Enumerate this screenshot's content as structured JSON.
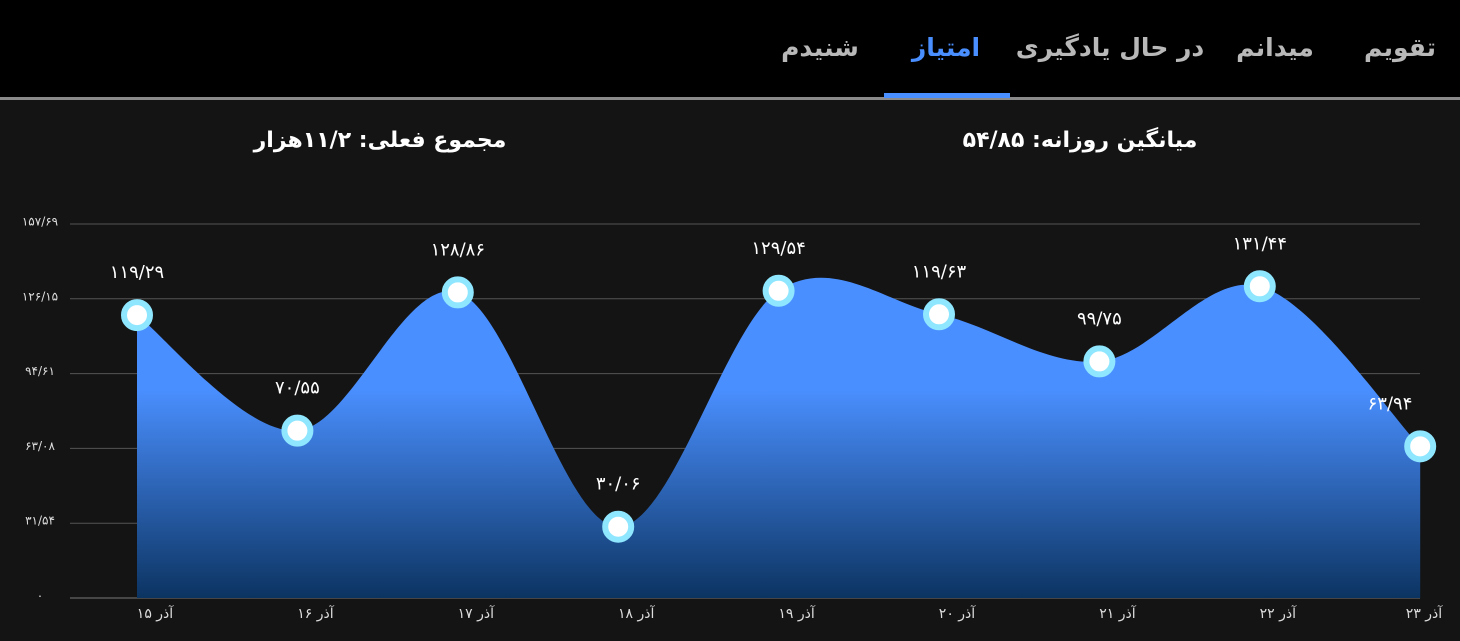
{
  "tabs": [
    "تقویم",
    "میدانم",
    "در حال یادگیری",
    "امتیاز",
    "شنیدم"
  ],
  "active_tab": 3,
  "stats": [
    "میانگین روزانه: ۵۴/۸۵",
    "مجموع فعلی: ۱۱/۲هزار"
  ],
  "chart_data": {
    "type": "area",
    "categories": [
      "۱۵ آذر",
      "۱۶ آذر",
      "۱۷ آذر",
      "۱۸ آذر",
      "۱۹ آذر",
      "۲۰ آذر",
      "۲۱ آذر",
      "۲۲ آذر",
      "۲۳ آذر"
    ],
    "values": [
      119.29,
      70.55,
      128.86,
      30.06,
      129.54,
      119.63,
      99.75,
      131.44,
      63.94
    ],
    "value_labels": [
      "۱۱۹/۲۹",
      "۷۰/۵۵",
      "۱۲۸/۸۶",
      "۳۰/۰۶",
      "۱۲۹/۵۴",
      "۱۱۹/۶۳",
      "۹۹/۷۵",
      "۱۳۱/۴۴",
      "۶۳/۹۴"
    ],
    "color": "#4a8fff",
    "ylim": [
      0,
      157.69
    ],
    "yticks": [
      {
        "value": 0,
        "label": "۰"
      },
      {
        "value": 31.54,
        "label": "۳۱/۵۴"
      },
      {
        "value": 63.08,
        "label": "۶۳/۰۸"
      },
      {
        "value": 94.61,
        "label": "۹۴/۶۱"
      },
      {
        "value": 126.15,
        "label": "۱۲۶/۱۵"
      },
      {
        "value": 157.69,
        "label": "۱۵۷/۶۹"
      }
    ],
    "grid": true
  }
}
